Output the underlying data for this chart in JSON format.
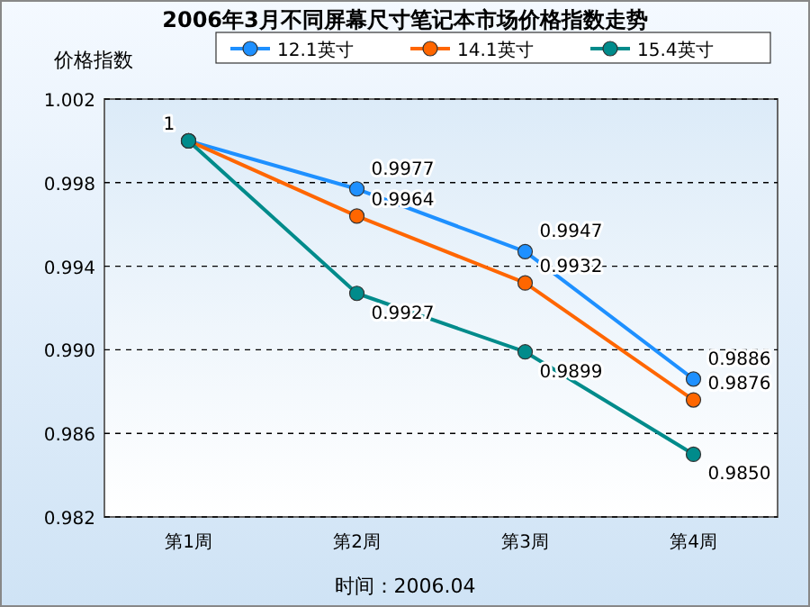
{
  "chart_data": {
    "type": "line",
    "title": "2006年3月不同屏幕尺寸笔记本市场价格指数走势",
    "ylabel": "价格指数",
    "categories": [
      "第1周",
      "第2周",
      "第3周",
      "第4周"
    ],
    "series": [
      {
        "name": "12.1英寸",
        "color": "#1e90ff",
        "values": [
          1,
          0.9977,
          0.9947,
          0.9886
        ],
        "value_labels": [
          "1",
          "0.9977",
          "0.9947",
          "0.9886"
        ]
      },
      {
        "name": "14.1英寸",
        "color": "#ff6600",
        "values": [
          1,
          0.9964,
          0.9932,
          0.9876
        ],
        "value_labels": [
          null,
          "0.9964",
          "0.9932",
          "0.9876"
        ]
      },
      {
        "name": "15.4英寸",
        "color": "#008b8b",
        "values": [
          1,
          0.9927,
          0.9899,
          0.985
        ],
        "value_labels": [
          null,
          "0.9927",
          "0.9899",
          "0.9850"
        ]
      }
    ],
    "ylim": [
      0.982,
      1.002
    ],
    "yticks": [
      {
        "value": 0.982,
        "label": "0.982"
      },
      {
        "value": 0.986,
        "label": "0.986"
      },
      {
        "value": 0.99,
        "label": "0.990"
      },
      {
        "value": 0.994,
        "label": "0.994"
      },
      {
        "value": 0.998,
        "label": "0.998"
      },
      {
        "value": 1.002,
        "label": "1.002"
      }
    ],
    "grid": "y",
    "legend": "top right",
    "marker": "circle",
    "line_style": "solid",
    "annotations": [
      "时间：2006.04"
    ]
  }
}
